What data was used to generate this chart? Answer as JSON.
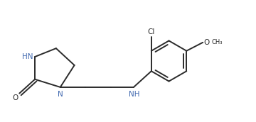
{
  "background": "#ffffff",
  "line_color": "#2b2b2b",
  "text_color": "#2b2b2b",
  "nh_color": "#4169b0",
  "n_color": "#4169b0",
  "o_color": "#2b2b2b",
  "line_width": 1.4,
  "font_size": 7.5,
  "fig_width": 3.6,
  "fig_height": 1.72,
  "dpi": 100,
  "xlim": [
    0.2,
    8.5
  ],
  "ylim": [
    0.5,
    4.8
  ]
}
